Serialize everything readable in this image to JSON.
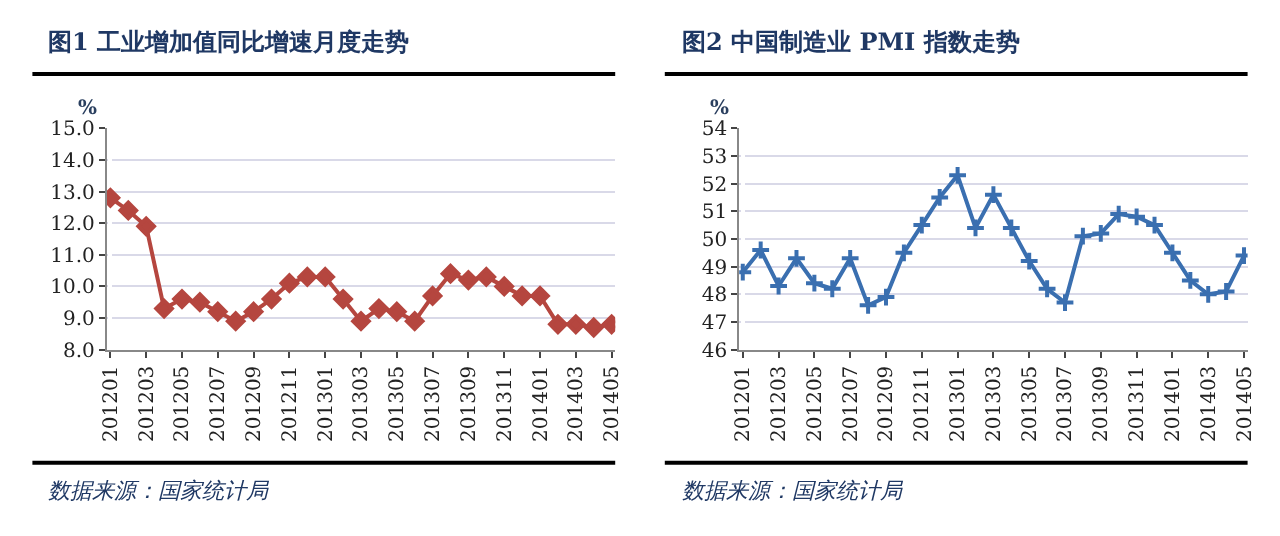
{
  "chart_data": [
    {
      "type": "line",
      "title": "图1 工业增加值同比增速月度走势",
      "ylabel": "%",
      "annotations": [
        "数据来源：国家统计局"
      ],
      "categories": [
        "201201",
        null,
        "201203",
        null,
        "201205",
        null,
        "201207",
        null,
        "201209",
        null,
        "201211",
        null,
        "201301",
        null,
        "201303",
        null,
        "201305",
        null,
        "201307",
        null,
        "201309",
        null,
        "201311",
        null,
        "201401",
        null,
        "201403",
        null,
        "201405"
      ],
      "series": [
        {
          "color": "#b5463f",
          "values": [
            12.8,
            12.4,
            11.9,
            9.3,
            9.6,
            9.5,
            9.2,
            8.9,
            9.2,
            9.6,
            10.1,
            10.3,
            10.3,
            9.6,
            8.9,
            9.3,
            9.2,
            8.9,
            9.7,
            10.4,
            10.2,
            10.3,
            10.0,
            9.7,
            9.7,
            8.8,
            8.8,
            8.7,
            8.8
          ]
        }
      ],
      "ylim": [
        8,
        15
      ],
      "yticks": [
        {
          "value": 8,
          "label": "8.0"
        },
        {
          "value": 9,
          "label": "9.0"
        },
        {
          "value": 10,
          "label": "10.0"
        },
        {
          "value": 11,
          "label": "11.0"
        },
        {
          "value": 12,
          "label": "12.0"
        },
        {
          "value": 13,
          "label": "13.0"
        },
        {
          "value": 14,
          "label": "14.0"
        },
        {
          "value": 15,
          "label": "15.0"
        }
      ],
      "grid": "y",
      "marker": "diamond"
    },
    {
      "type": "line",
      "title": "图2 中国制造业 PMI 指数走势",
      "ylabel": "%",
      "annotations": [
        "数据来源：国家统计局"
      ],
      "categories": [
        "201201",
        null,
        "201203",
        null,
        "201205",
        null,
        "201207",
        null,
        "201209",
        null,
        "201211",
        null,
        "201301",
        null,
        "201303",
        null,
        "201305",
        null,
        "201307",
        null,
        "201309",
        null,
        "201311",
        null,
        "201401",
        null,
        "201403",
        null,
        "201405"
      ],
      "series": [
        {
          "color": "#3a6fb0",
          "values": [
            48.8,
            49.6,
            48.3,
            49.3,
            48.4,
            48.2,
            49.3,
            47.6,
            47.9,
            49.5,
            50.5,
            51.5,
            52.3,
            50.4,
            51.6,
            50.4,
            49.2,
            48.2,
            47.7,
            50.1,
            50.2,
            50.9,
            50.8,
            50.5,
            49.5,
            48.5,
            48.0,
            48.1,
            49.4
          ]
        }
      ],
      "ylim": [
        46,
        54
      ],
      "yticks": [
        46,
        47,
        48,
        49,
        50,
        51,
        52,
        53,
        54
      ],
      "grid": "y",
      "marker": "cross"
    }
  ]
}
